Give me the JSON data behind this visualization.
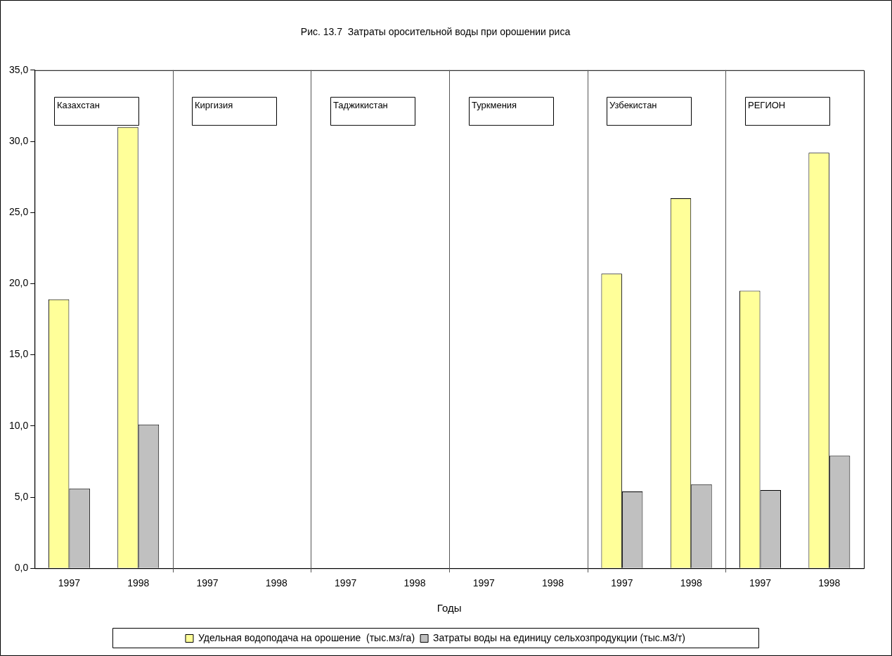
{
  "chart_data": {
    "type": "bar",
    "title": "Рис. 13.7  Затраты оросительной воды при орошении риса",
    "xlabel": "Годы",
    "categories": [
      "1997",
      "1998",
      "1997",
      "1998",
      "1997",
      "1998",
      "1997",
      "1998",
      "1997",
      "1998",
      "1997",
      "1998"
    ],
    "series": [
      {
        "name": "Удельная водоподача на орошение  (тыс.мз/га)",
        "color": "#ffff99",
        "values": [
          18.9,
          31.0,
          null,
          null,
          null,
          null,
          null,
          null,
          20.7,
          26.0,
          19.5,
          29.2
        ]
      },
      {
        "name": "Затраты воды на единицу сельхозпродукции (тыс.м3/т)",
        "color": "#c0c0c0",
        "values": [
          5.6,
          10.1,
          null,
          null,
          null,
          null,
          null,
          null,
          5.4,
          5.9,
          5.5,
          7.9
        ]
      }
    ],
    "ylim": [
      0,
      35
    ],
    "yticks": [
      {
        "value": 0,
        "label": "0,0"
      },
      {
        "value": 5,
        "label": "5,0"
      },
      {
        "value": 10,
        "label": "10,0"
      },
      {
        "value": 15,
        "label": "15,0"
      },
      {
        "value": 20,
        "label": "20,0"
      },
      {
        "value": 25,
        "label": "25,0"
      },
      {
        "value": 30,
        "label": "30,0"
      },
      {
        "value": 35,
        "label": "35,0"
      }
    ],
    "annotations": [
      "Казахстан",
      "Киргизия",
      "Таджикистан",
      "Туркмения",
      "Узбекистан",
      "РЕГИОН"
    ],
    "legend": "bottom",
    "grid": false
  }
}
